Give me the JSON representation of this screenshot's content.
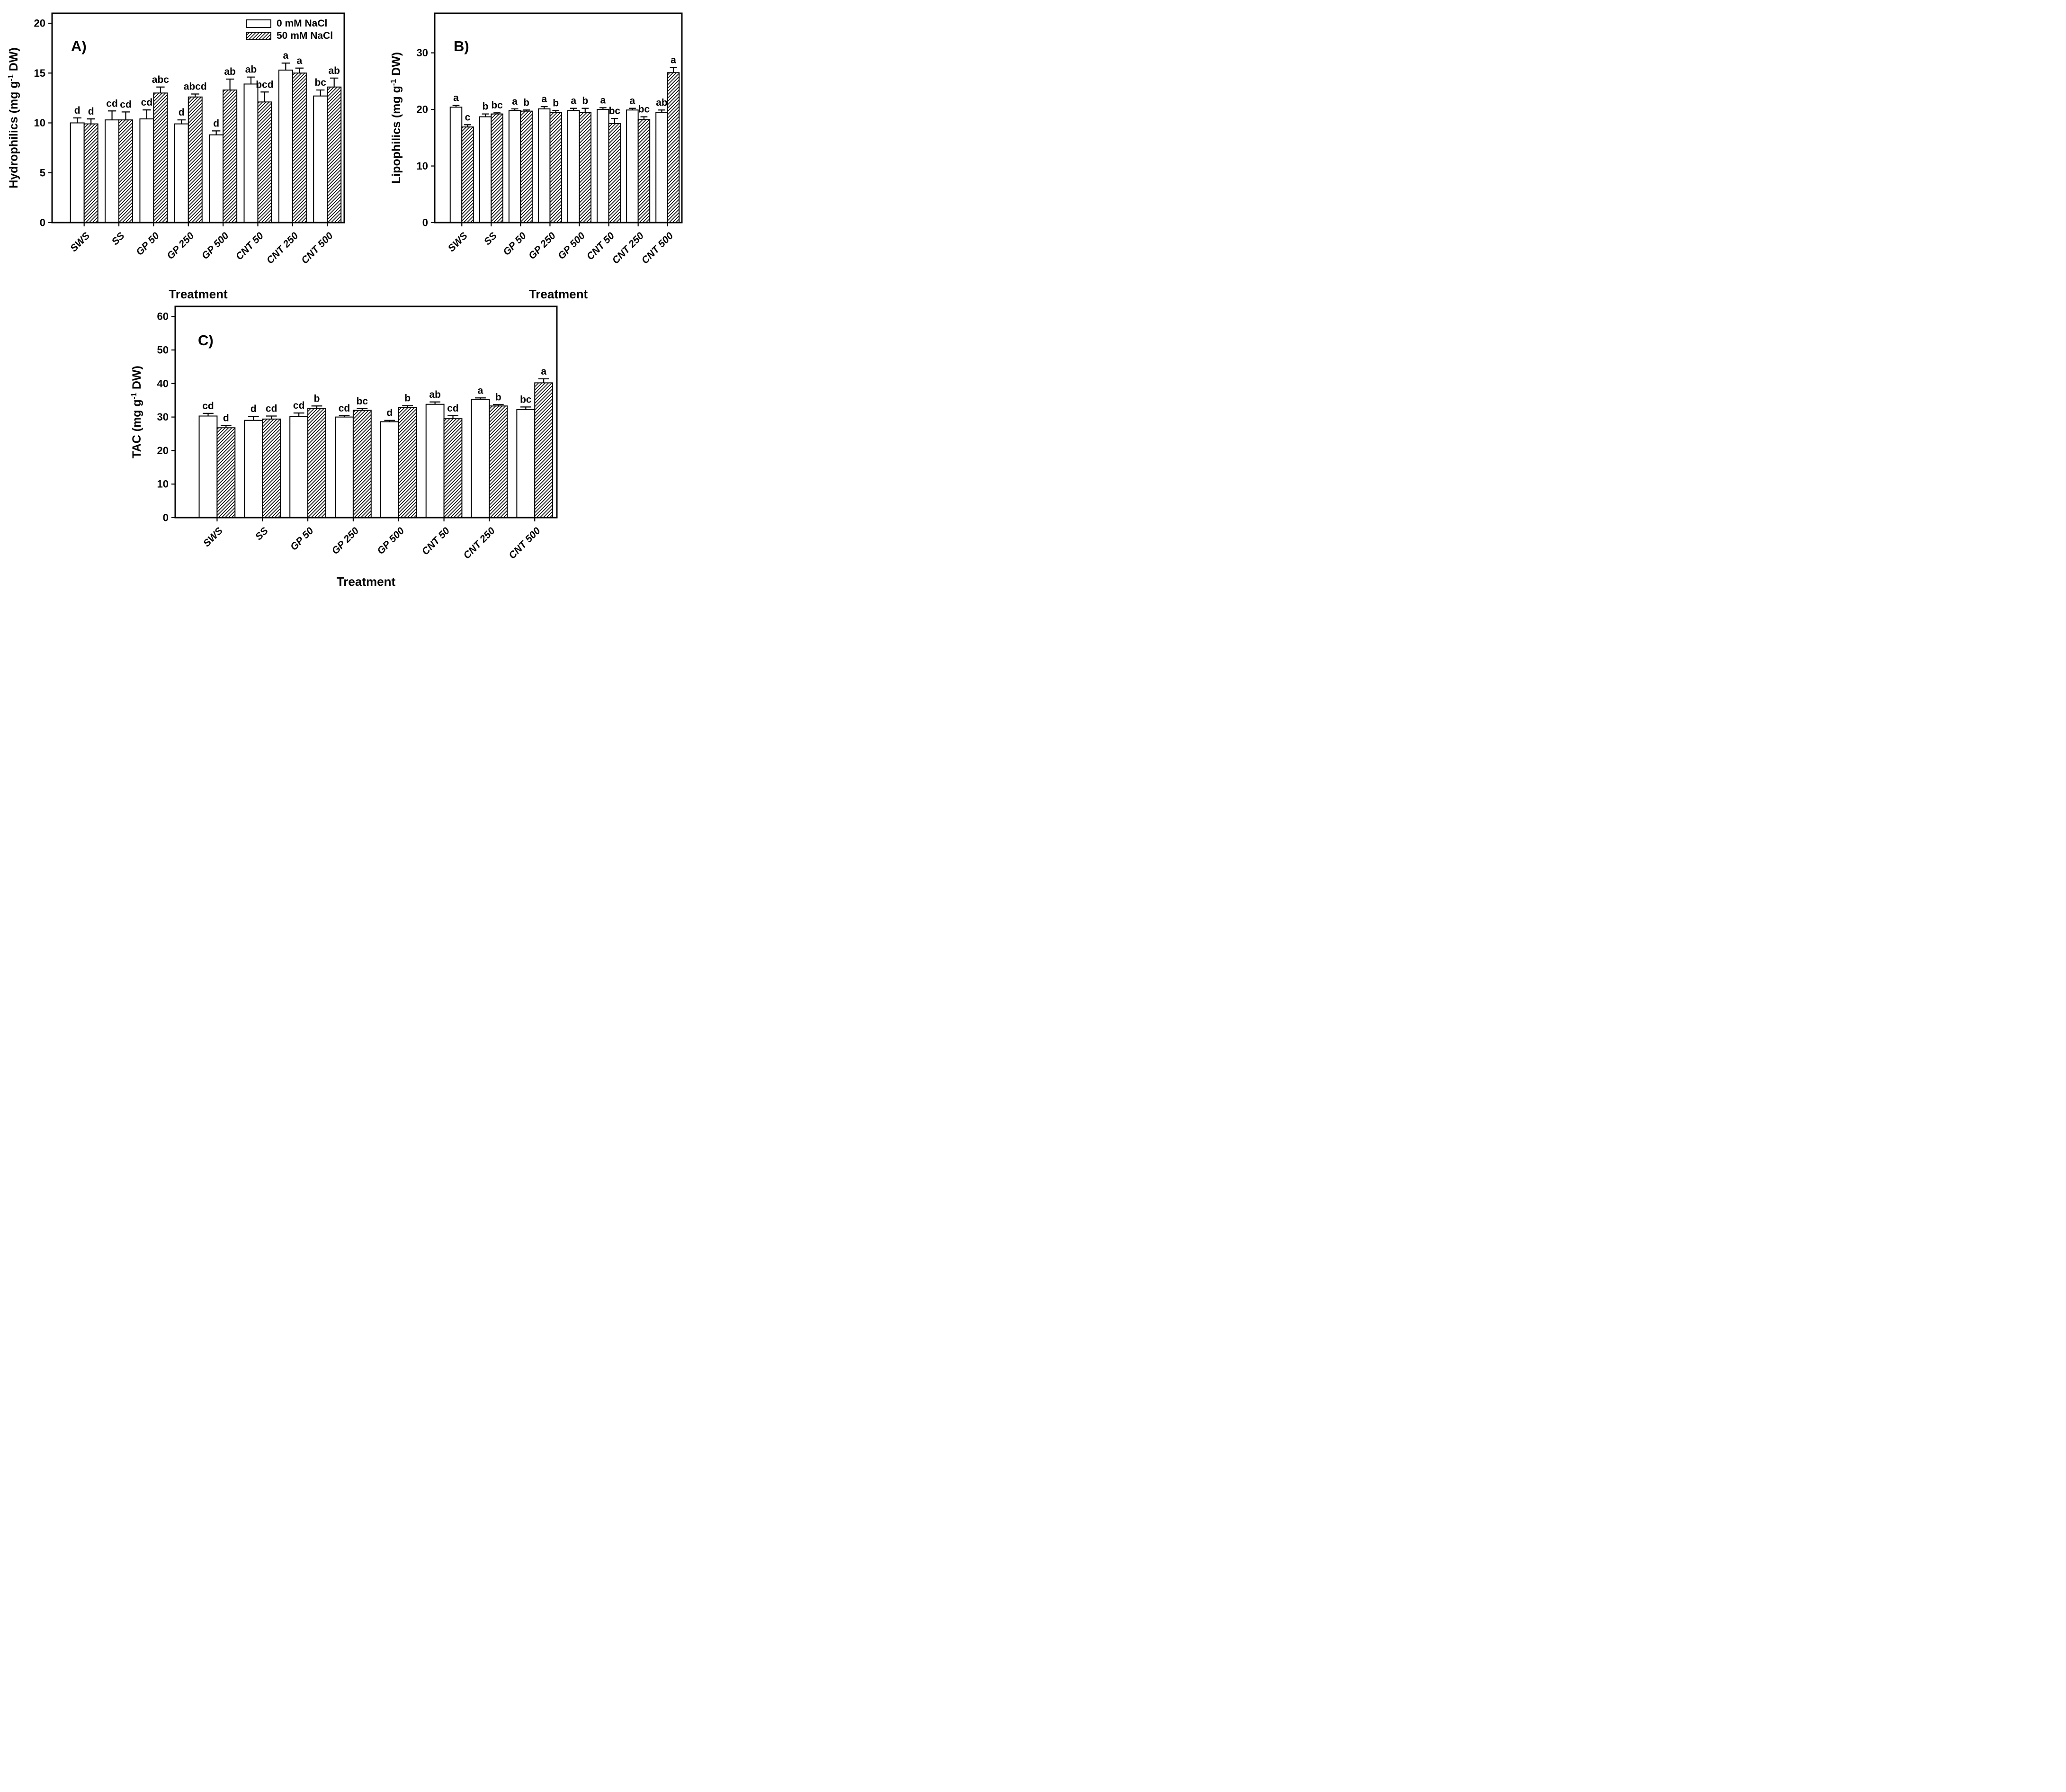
{
  "figure_type": "three-panel grouped bar figure with error bars and significance letters",
  "colors": {
    "ink": "#000000",
    "paper": "#ffffff"
  },
  "x_axis_title": "Treatment",
  "categories": [
    "SWS",
    "SS",
    "GP 50",
    "GP 250",
    "GP 500",
    "CNT 50",
    "CNT 250",
    "CNT 500"
  ],
  "legend": {
    "items": [
      {
        "label": "0 mM NaCl",
        "swatch": "solid-white"
      },
      {
        "label": "50 mM NaCl",
        "swatch": "diagonal-hatch"
      }
    ]
  },
  "chart_data": [
    {
      "id": "A",
      "type": "bar",
      "panel_label": "A)",
      "ylabel": {
        "pre": "Hydrophilics (mg g",
        "sup": "-1",
        "post": " DW)"
      },
      "ylim": [
        0,
        21
      ],
      "yticks": [
        0,
        5,
        10,
        15,
        20
      ],
      "legend_visible": true,
      "series": [
        {
          "name": "0 mM NaCl",
          "values": [
            10.0,
            10.3,
            10.4,
            9.9,
            8.8,
            13.9,
            15.3,
            12.7
          ],
          "errors": [
            0.5,
            0.9,
            0.9,
            0.4,
            0.4,
            0.7,
            0.7,
            0.6
          ],
          "letters": [
            "d",
            "cd",
            "cd",
            "d",
            "d",
            "ab",
            "a",
            "bc"
          ]
        },
        {
          "name": "50 mM NaCl",
          "values": [
            9.9,
            10.3,
            13.0,
            12.6,
            13.3,
            12.1,
            15.0,
            13.6
          ],
          "errors": [
            0.5,
            0.8,
            0.6,
            0.3,
            1.1,
            1.0,
            0.5,
            0.9
          ],
          "letters": [
            "d",
            "cd",
            "abc",
            "abcd",
            "ab",
            "bcd",
            "a",
            "ab"
          ]
        }
      ]
    },
    {
      "id": "B",
      "type": "bar",
      "panel_label": "B)",
      "ylabel": {
        "pre": "Lipophilics (mg g",
        "sup": "-1",
        "post": " DW)"
      },
      "ylim": [
        0,
        37
      ],
      "yticks": [
        0,
        10,
        20,
        30
      ],
      "legend_visible": false,
      "series": [
        {
          "name": "0 mM NaCl",
          "values": [
            20.4,
            18.7,
            19.8,
            20.1,
            19.8,
            20.0,
            19.9,
            19.5
          ],
          "errors": [
            0.3,
            0.5,
            0.3,
            0.4,
            0.4,
            0.3,
            0.3,
            0.4
          ],
          "letters": [
            "a",
            "b",
            "a",
            "a",
            "a",
            "a",
            "a",
            "ab"
          ]
        },
        {
          "name": "50 mM NaCl",
          "values": [
            16.9,
            19.2,
            19.7,
            19.5,
            19.5,
            17.5,
            18.2,
            26.5
          ],
          "errors": [
            0.4,
            0.2,
            0.2,
            0.3,
            0.7,
            0.9,
            0.5,
            0.9
          ],
          "letters": [
            "c",
            "bc",
            "b",
            "b",
            "b",
            "bc",
            "bc",
            "a"
          ]
        }
      ]
    },
    {
      "id": "C",
      "type": "bar",
      "panel_label": "C)",
      "ylabel": {
        "pre": "TAC (mg g",
        "sup": "-1",
        "post": " DW)"
      },
      "ylim": [
        0,
        63
      ],
      "yticks": [
        0,
        10,
        20,
        30,
        40,
        50,
        60
      ],
      "legend_visible": false,
      "series": [
        {
          "name": "0 mM NaCl",
          "values": [
            30.3,
            29.0,
            30.2,
            30.0,
            28.6,
            33.8,
            35.3,
            32.2
          ],
          "errors": [
            0.8,
            1.2,
            1.0,
            0.4,
            0.4,
            0.7,
            0.4,
            0.8
          ],
          "letters": [
            "cd",
            "d",
            "cd",
            "cd",
            "d",
            "ab",
            "a",
            "bc"
          ]
        },
        {
          "name": "50 mM NaCl",
          "values": [
            26.8,
            29.4,
            32.6,
            32.0,
            32.8,
            29.5,
            33.3,
            40.2
          ],
          "errors": [
            0.7,
            0.9,
            0.7,
            0.5,
            0.6,
            0.9,
            0.4,
            1.2
          ],
          "letters": [
            "d",
            "cd",
            "b",
            "bc",
            "b",
            "cd",
            "b",
            "a"
          ]
        }
      ]
    }
  ]
}
